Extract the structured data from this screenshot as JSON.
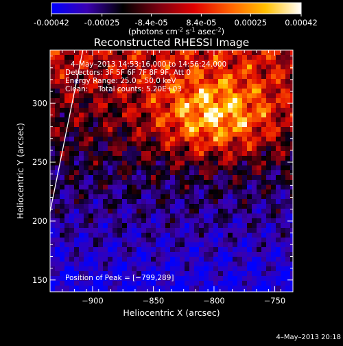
{
  "colorbar": {
    "tick_labels": [
      "-0.00042",
      "-0.00025",
      "-8.4e-05",
      "8.4e-05",
      "0.00025",
      "0.00042"
    ],
    "tick_values": [
      -0.00042,
      -0.00025,
      -8.4e-05,
      8.4e-05,
      0.00025,
      0.00042
    ],
    "range": [
      -0.00042,
      0.00042
    ],
    "units_main": "(photons cm",
    "units_exp1": "-2",
    "units_mid": " s",
    "units_exp2": "-1",
    "units_mid2": " asec",
    "units_exp3": "-2",
    "units_end": ")",
    "stops": [
      "#0000ff",
      "#3a00b0",
      "#000000",
      "#7a0010",
      "#e00000",
      "#ff6000",
      "#ffc000",
      "#ffffff"
    ]
  },
  "chart_data": {
    "type": "heatmap",
    "title": "Reconstructed RHESSI Image",
    "xlabel": "Heliocentric X (arcsec)",
    "ylabel": "Heliocentric Y (arcsec)",
    "xlim": [
      -935,
      -735
    ],
    "ylim": [
      140,
      345
    ],
    "x_ticks": [
      -900,
      -850,
      -800,
      -750
    ],
    "x_tick_labels": [
      "−900",
      "−850",
      "−800",
      "−750"
    ],
    "y_ticks": [
      150,
      200,
      250,
      300
    ],
    "y_tick_labels": [
      "150",
      "200",
      "250",
      "300"
    ],
    "peak": {
      "x": -799,
      "y": 289
    },
    "limb_line": {
      "x": [
        -935,
        -908
      ],
      "y": [
        208,
        345
      ]
    },
    "annotations": {
      "time": "4–May–2013 14:53:16.000 to 14:56:24.000",
      "detectors": "Detectors: 3F 5F 6F 7F 8F 9F, Att 0",
      "energy": "Energy Range: 25.0 – 50.0 keV",
      "clean_label": "Clean:",
      "counts": "Total counts: 5.20E+03",
      "peak": "Position of Peak = [−799,289]"
    }
  },
  "footer": {
    "timestamp": "4–May–2013 20:18"
  }
}
